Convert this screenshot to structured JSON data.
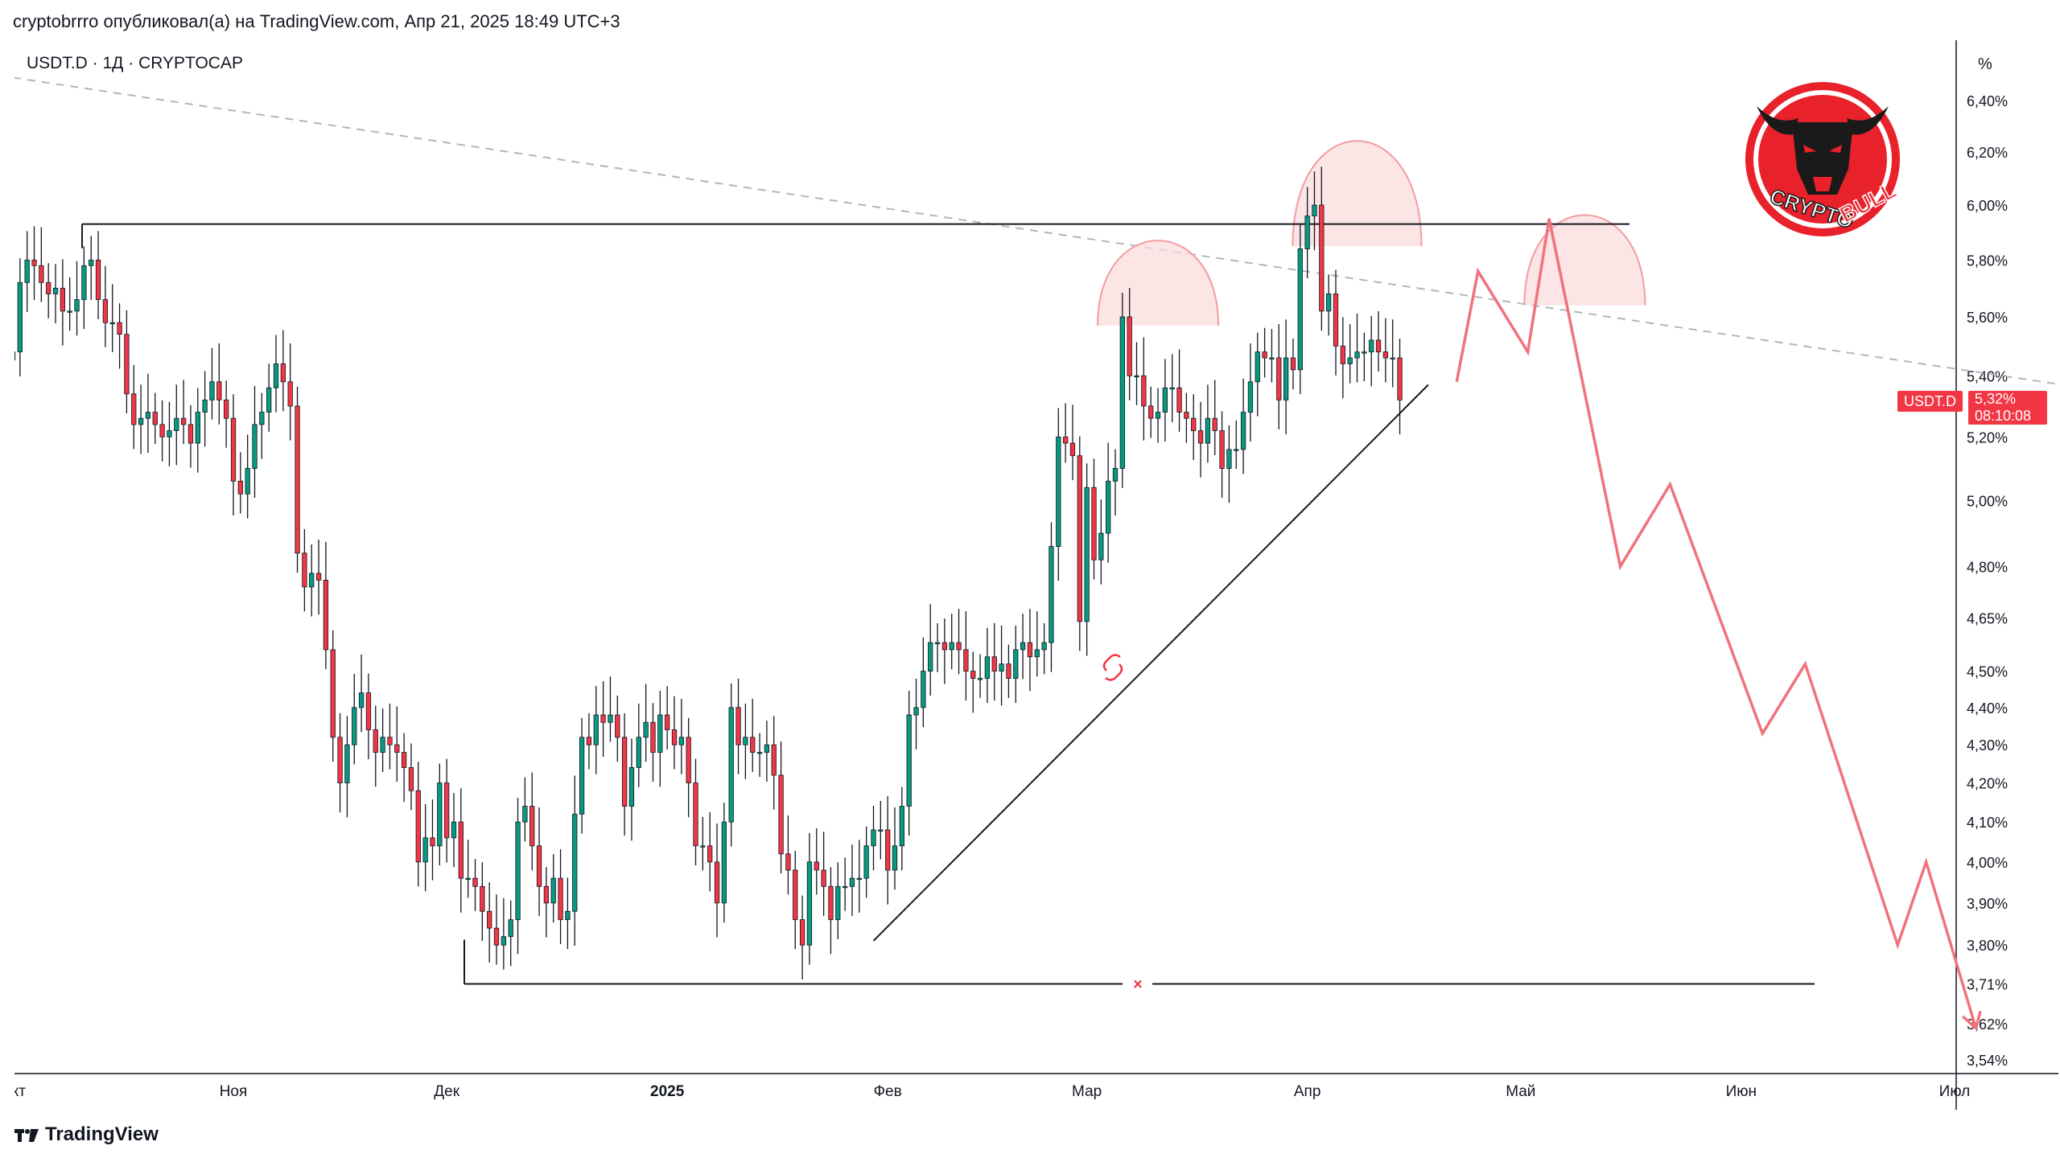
{
  "header": {
    "published_by": "cryptobrrro опубликовал(а) на TradingView.com, Апр 21, 2025 18:49 UTC+3"
  },
  "symbol": {
    "title": "USDT.D · 1Д · CRYPTOCAP",
    "ticker": "USDT.D",
    "last_price": "5,32%",
    "countdown": "08:10:08"
  },
  "branding": {
    "platform": "TradingView",
    "watermark_line1": "CRYPTO",
    "watermark_line2": "BULL"
  },
  "colors": {
    "up": "#089981",
    "down": "#f23645",
    "projection": "#f0737b",
    "dome_fill": "#fbdcdc",
    "dome_stroke": "#f29ca1",
    "trendline_dash": "#b2b5be"
  },
  "chart_data": {
    "type": "candlestick",
    "title": "USDT.D · 1Д · CRYPTOCAP",
    "scale": "log",
    "price_axis_unit": "%",
    "y_ticks": [
      {
        "label": "6,40%",
        "value": 6.4
      },
      {
        "label": "6,20%",
        "value": 6.2
      },
      {
        "label": "6,00%",
        "value": 6.0
      },
      {
        "label": "5,80%",
        "value": 5.8
      },
      {
        "label": "5,60%",
        "value": 5.6
      },
      {
        "label": "5,40%",
        "value": 5.4
      },
      {
        "label": "5,20%",
        "value": 5.2
      },
      {
        "label": "5,00%",
        "value": 5.0
      },
      {
        "label": "4,80%",
        "value": 4.8
      },
      {
        "label": "4,65%",
        "value": 4.65
      },
      {
        "label": "4,50%",
        "value": 4.5
      },
      {
        "label": "4,40%",
        "value": 4.4
      },
      {
        "label": "4,30%",
        "value": 4.3
      },
      {
        "label": "4,20%",
        "value": 4.2
      },
      {
        "label": "4,10%",
        "value": 4.1
      },
      {
        "label": "4,00%",
        "value": 4.0
      },
      {
        "label": "3,90%",
        "value": 3.9
      },
      {
        "label": "3,80%",
        "value": 3.8
      },
      {
        "label": "3,71%",
        "value": 3.71
      },
      {
        "label": "3,62%",
        "value": 3.62
      },
      {
        "label": "3,54%",
        "value": 3.54
      }
    ],
    "x_ticks": [
      {
        "label": "Окт",
        "date": "2024-10-01",
        "bold": false
      },
      {
        "label": "Ноя",
        "date": "2024-11-01",
        "bold": false
      },
      {
        "label": "Дек",
        "date": "2024-12-01",
        "bold": false
      },
      {
        "label": "2025",
        "date": "2025-01-01",
        "bold": true
      },
      {
        "label": "Фев",
        "date": "2025-02-01",
        "bold": false
      },
      {
        "label": "Мар",
        "date": "2025-03-01",
        "bold": false
      },
      {
        "label": "Апр",
        "date": "2025-04-01",
        "bold": false
      },
      {
        "label": "Май",
        "date": "2025-05-01",
        "bold": false
      },
      {
        "label": "Июн",
        "date": "2025-06-01",
        "bold": false
      },
      {
        "label": "Июл",
        "date": "2025-07-01",
        "bold": false
      }
    ],
    "series": [
      {
        "x_start": "2024-10-01",
        "close": [
          5.48,
          5.72,
          5.8,
          5.78,
          5.72,
          5.68,
          5.7,
          5.62,
          5.62,
          5.66,
          5.78,
          5.8,
          5.66,
          5.58,
          5.58,
          5.54,
          5.34,
          5.24,
          5.26,
          5.28,
          5.24,
          5.2,
          5.22,
          5.26,
          5.24,
          5.18,
          5.28,
          5.32,
          5.38,
          5.32,
          5.26,
          5.06,
          5.02,
          5.1,
          5.24,
          5.28,
          5.36,
          5.44,
          5.38,
          5.3,
          4.84,
          4.74,
          4.78,
          4.76,
          4.56,
          4.32,
          4.2,
          4.3,
          4.4,
          4.44,
          4.34,
          4.28,
          4.32,
          4.3,
          4.28,
          4.24,
          4.18,
          4.0,
          4.06,
          4.04,
          4.2,
          4.06,
          4.1,
          3.96,
          3.96,
          3.94,
          3.88,
          3.84,
          3.8,
          3.82,
          3.86,
          4.1,
          4.14,
          4.04,
          3.94,
          3.9,
          3.96,
          3.86,
          3.88,
          4.12,
          4.32,
          4.3,
          4.38,
          4.36,
          4.38,
          4.32,
          4.14,
          4.24,
          4.32,
          4.36,
          4.28,
          4.38,
          4.34,
          4.3,
          4.32,
          4.2,
          4.04,
          4.04,
          4.0,
          3.9,
          4.1,
          4.4,
          4.3,
          4.32,
          4.28,
          4.28,
          4.3,
          4.22,
          4.02,
          3.98,
          3.86,
          3.8,
          4.0,
          3.98,
          3.94,
          3.86,
          3.94,
          3.94,
          3.96,
          3.96,
          4.04,
          4.08,
          4.08,
          3.98,
          4.04,
          4.14,
          4.38,
          4.4,
          4.5,
          4.58,
          4.58,
          4.56,
          4.58,
          4.56,
          4.5,
          4.48,
          4.48,
          4.54,
          4.5,
          4.52,
          4.48,
          4.56,
          4.58,
          4.54,
          4.56,
          4.58,
          4.86,
          5.2,
          5.18,
          5.14,
          4.64,
          5.04,
          4.82,
          4.9,
          5.06,
          5.1,
          5.6,
          5.4,
          5.4,
          5.3,
          5.26,
          5.28,
          5.36,
          5.36,
          5.28,
          5.26,
          5.22,
          5.18,
          5.26,
          5.22,
          5.1,
          5.16,
          5.16,
          5.28,
          5.38,
          5.48,
          5.46,
          5.46,
          5.32,
          5.46,
          5.42,
          5.84,
          5.96,
          6.0,
          5.62,
          5.68,
          5.5,
          5.44,
          5.46,
          5.48,
          5.48,
          5.52,
          5.48,
          5.46,
          5.46,
          5.32
        ]
      }
    ],
    "annotations": {
      "resistance_level": 5.93,
      "support_level": 3.71,
      "descending_trendline": [
        {
          "date": "2024-09-29",
          "value": 6.5
        },
        {
          "date": "2025-07-19",
          "value": 5.36
        }
      ],
      "rising_trendline": [
        {
          "date": "2025-01-30",
          "value": 3.81
        },
        {
          "date": "2025-04-18",
          "value": 5.37
        }
      ],
      "heads": [
        {
          "apex_date": "2025-03-11",
          "apex_value": 5.9,
          "base_value": 5.57
        },
        {
          "apex_date": "2025-04-08",
          "apex_value": 6.3,
          "base_value": 5.85
        },
        {
          "apex_date": "2025-05-10",
          "apex_value": 6.0,
          "base_value": 5.64
        }
      ],
      "projection_path": [
        {
          "date": "2025-04-22",
          "value": 5.38
        },
        {
          "date": "2025-04-25",
          "value": 5.76
        },
        {
          "date": "2025-05-02",
          "value": 5.48
        },
        {
          "date": "2025-05-05",
          "value": 5.95
        },
        {
          "date": "2025-05-15",
          "value": 4.8
        },
        {
          "date": "2025-05-22",
          "value": 5.05
        },
        {
          "date": "2025-06-04",
          "value": 4.33
        },
        {
          "date": "2025-06-10",
          "value": 4.52
        },
        {
          "date": "2025-06-23",
          "value": 3.8
        },
        {
          "date": "2025-06-27",
          "value": 4.0
        },
        {
          "date": "2025-07-04",
          "value": 3.61
        }
      ]
    }
  }
}
